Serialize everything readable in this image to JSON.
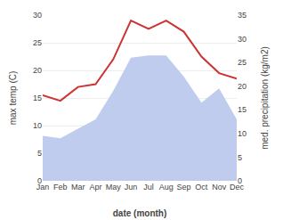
{
  "chart_data": {
    "type": "line",
    "xlabel": "date (month)",
    "ylabel": "max temp (C)",
    "y2label": "med. precipitation (kg/m2)",
    "categories": [
      "Jan",
      "Feb",
      "Mar",
      "Apr",
      "May",
      "Jun",
      "Jul",
      "Aug",
      "Sep",
      "Oct",
      "Nov",
      "Dec"
    ],
    "series": [
      {
        "type": "area",
        "axis": "y2",
        "color": "#c0ccee",
        "values": [
          9.5,
          9.0,
          11.0,
          13.0,
          19.0,
          26.0,
          26.5,
          26.5,
          22.0,
          16.5,
          19.5,
          13.0
        ]
      },
      {
        "type": "line",
        "color": "#cc3333",
        "values": [
          15.5,
          14.5,
          17.0,
          17.5,
          22.0,
          29.0,
          27.5,
          29.0,
          27.0,
          22.5,
          19.5,
          18.5
        ]
      }
    ],
    "ylim": [
      0,
      30
    ],
    "yticks": [
      0,
      5,
      10,
      15,
      20,
      25,
      30
    ],
    "y2lim": [
      0,
      35
    ],
    "y2ticks": [
      0,
      5,
      10,
      15,
      20,
      25,
      30,
      35
    ],
    "grid": true
  }
}
